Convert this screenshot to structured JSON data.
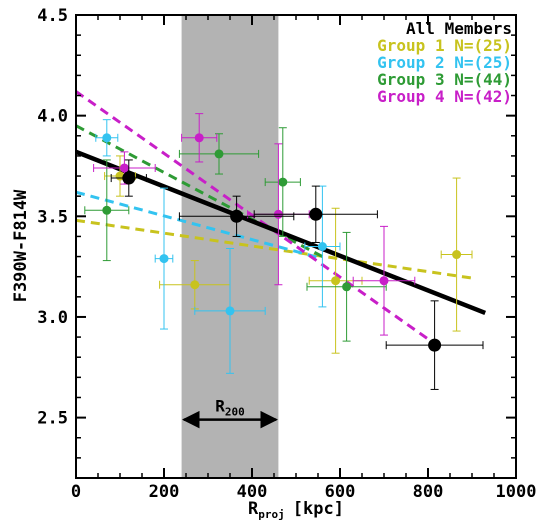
{
  "chart_data": {
    "type": "scatter",
    "xlabel": "R",
    "xlabel_sub": "proj",
    "xlabel_unit": "[kpc]",
    "ylabel": "F390W-F814W",
    "xlim": [
      0,
      1000
    ],
    "ylim": [
      2.2,
      4.5
    ],
    "x_ticks": [
      "0",
      "200",
      "400",
      "600",
      "800",
      "1000"
    ],
    "x_tick_values": [
      0,
      200,
      400,
      600,
      800,
      1000
    ],
    "y_ticks": [
      "2.5",
      "3.0",
      "3.5",
      "4.0",
      "4.5"
    ],
    "y_tick_values": [
      2.5,
      3.0,
      3.5,
      4.0,
      4.5
    ],
    "grid": false,
    "legend_position": "top-right",
    "shaded_band": {
      "x_range": [
        240,
        460
      ],
      "color": "#b3b3b3"
    },
    "annotation": {
      "label": "R",
      "label_sub": "200",
      "x_range": [
        245,
        455
      ],
      "y": 2.49
    },
    "series": [
      {
        "name": "All Members",
        "color": "#000000",
        "points": [
          {
            "x": 120,
            "y": 3.69,
            "xerr": 40,
            "yerr": 0.09
          },
          {
            "x": 365,
            "y": 3.5,
            "xerr": 130,
            "yerr": 0.1
          },
          {
            "x": 545,
            "y": 3.51,
            "xerr": 140,
            "yerr": 0.14
          },
          {
            "x": 815,
            "y": 2.86,
            "xerr": 110,
            "yerr": 0.22
          }
        ],
        "fit": {
          "x": [
            0,
            930
          ],
          "y": [
            3.82,
            3.02
          ],
          "style": "solid"
        }
      },
      {
        "name": "Group 1 N=(25)",
        "color": "#c8c31e",
        "points": [
          {
            "x": 100,
            "y": 3.7,
            "xerr": 35,
            "yerr": 0.1
          },
          {
            "x": 270,
            "y": 3.16,
            "xerr": 80,
            "yerr": 0.12
          },
          {
            "x": 590,
            "y": 3.18,
            "xerr": 60,
            "yerr": 0.36
          },
          {
            "x": 865,
            "y": 3.31,
            "xerr": 35,
            "yerr": 0.38
          }
        ],
        "fit": {
          "x": [
            0,
            910
          ],
          "y": [
            3.48,
            3.19
          ],
          "style": "dashed"
        }
      },
      {
        "name": "Group 2 N=(25)",
        "color": "#33c3f0",
        "points": [
          {
            "x": 70,
            "y": 3.89,
            "xerr": 25,
            "yerr": 0.09
          },
          {
            "x": 200,
            "y": 3.29,
            "xerr": 20,
            "yerr": 0.35
          },
          {
            "x": 350,
            "y": 3.03,
            "xerr": 80,
            "yerr": 0.31
          },
          {
            "x": 560,
            "y": 3.35,
            "xerr": 40,
            "yerr": 0.3
          }
        ],
        "fit": {
          "x": [
            0,
            560
          ],
          "y": [
            3.62,
            3.29
          ],
          "style": "dashed"
        }
      },
      {
        "name": "Group 3 N=(44)",
        "color": "#2e9b35",
        "points": [
          {
            "x": 70,
            "y": 3.53,
            "xerr": 50,
            "yerr": 0.25
          },
          {
            "x": 325,
            "y": 3.81,
            "xerr": 90,
            "yerr": 0.1
          },
          {
            "x": 470,
            "y": 3.67,
            "xerr": 40,
            "yerr": 0.27
          },
          {
            "x": 615,
            "y": 3.15,
            "xerr": 90,
            "yerr": 0.27
          }
        ],
        "fit": {
          "x": [
            0,
            560
          ],
          "y": [
            3.95,
            3.3
          ],
          "style": "dashed"
        }
      },
      {
        "name": "Group 4 N=(42)",
        "color": "#c81fc8",
        "points": [
          {
            "x": 110,
            "y": 3.74,
            "xerr": 70,
            "yerr": 0.08
          },
          {
            "x": 280,
            "y": 3.89,
            "xerr": 40,
            "yerr": 0.12
          },
          {
            "x": 460,
            "y": 3.51,
            "xerr": 70,
            "yerr": 0.35
          },
          {
            "x": 700,
            "y": 3.18,
            "xerr": 70,
            "yerr": 0.27
          }
        ],
        "fit": {
          "x": [
            0,
            820
          ],
          "y": [
            4.12,
            2.86
          ],
          "style": "dashed"
        }
      }
    ]
  }
}
